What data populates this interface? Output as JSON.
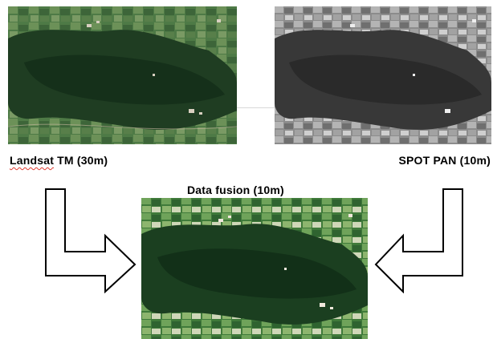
{
  "labels": {
    "landsat": {
      "name": "Landsat",
      "rest": " TM (30m)"
    },
    "spot": "SPOT PAN (10m)",
    "fusion": "Data fusion (10m)"
  },
  "images": {
    "landsat": "satellite-image-landsat-color",
    "spot": "satellite-image-spot-panchromatic",
    "fusion": "satellite-image-fused-color"
  },
  "colors": {
    "forest_dark": "#1a3a1e",
    "field_green": "#3f7a3a",
    "pan_gray": "#9a9a9a",
    "spell_underline": "#e03a2f"
  }
}
